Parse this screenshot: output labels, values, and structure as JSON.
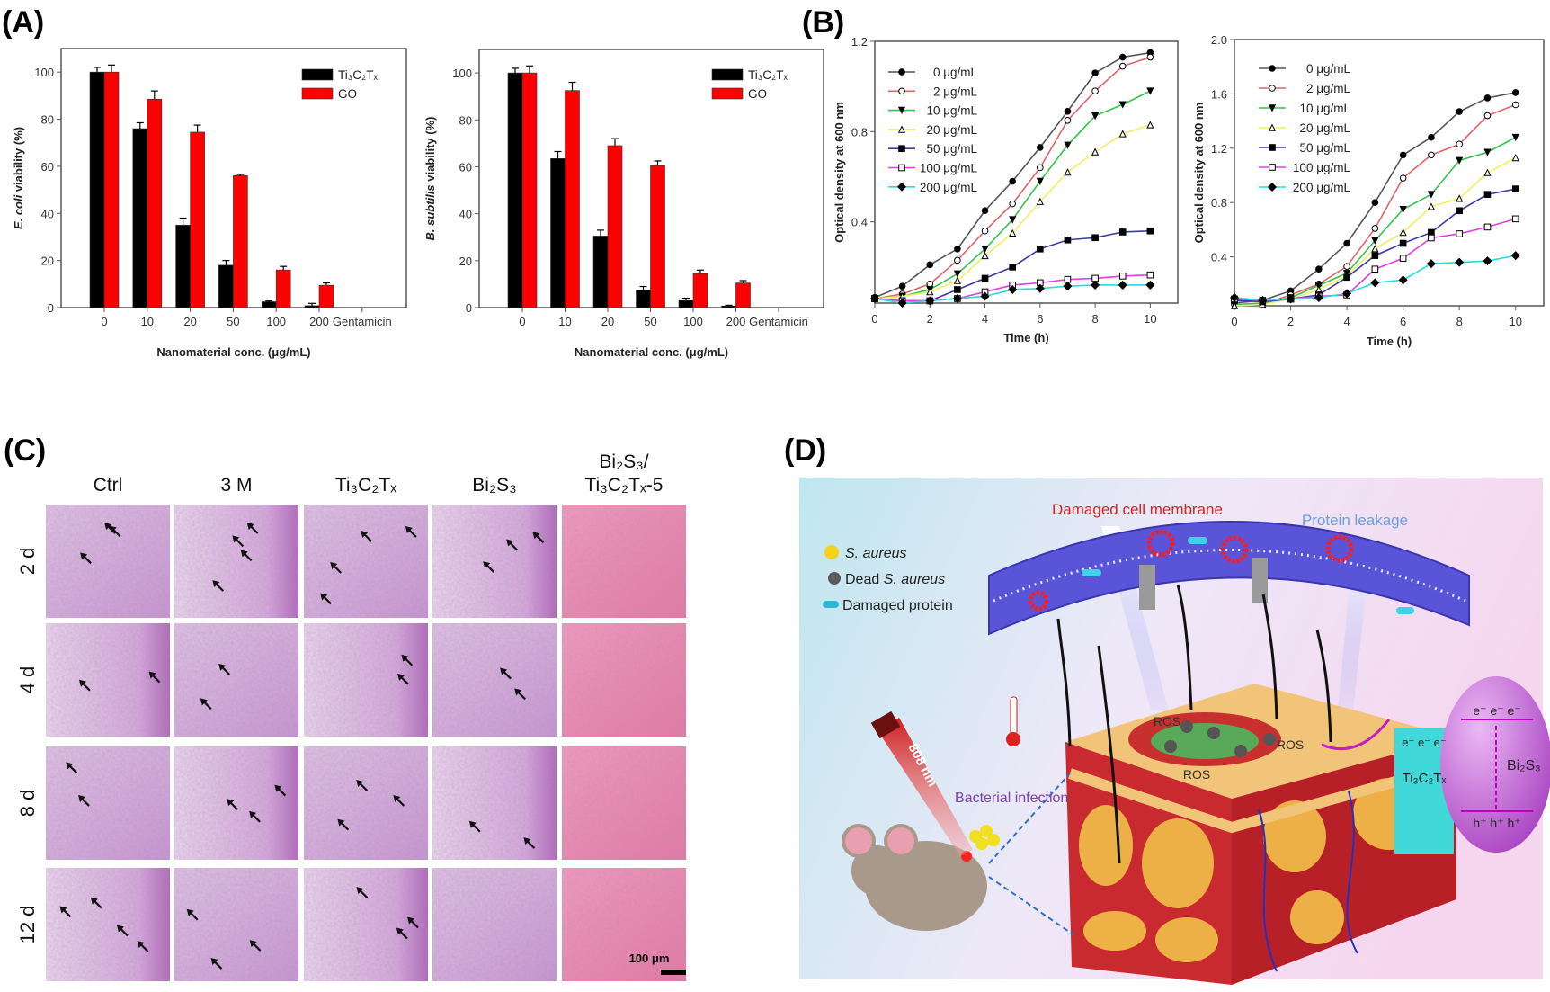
{
  "panel_labels": {
    "a": "(A)",
    "b": "(B)",
    "c": "(C)",
    "d": "(D)"
  },
  "chart_data": [
    {
      "type": "bar",
      "ylabel_italic": "E. coli",
      "ylabel_rest": " viability (%)",
      "xlabel": "Nanomaterial conc. (μg/mL)",
      "categories": [
        "0",
        "10",
        "20",
        "50",
        "100",
        "200",
        "Gentamicin"
      ],
      "ylim": [
        0,
        110
      ],
      "yticks": [
        "0",
        "20",
        "40",
        "60",
        "80",
        "100"
      ],
      "legend_position": "top-right",
      "series": [
        {
          "name": "Ti₃C₂Tₓ",
          "color": "#000000",
          "values": [
            100,
            76,
            35,
            18,
            2.5,
            0.8,
            0
          ],
          "errors": [
            2,
            2.5,
            3,
            2,
            0.3,
            1,
            0
          ]
        },
        {
          "name": "GO",
          "color": "#ff0000",
          "values": [
            100,
            88.5,
            74.5,
            56,
            16,
            9.5,
            0
          ],
          "errors": [
            3,
            3.5,
            3,
            0.5,
            1.5,
            1,
            0
          ]
        }
      ]
    },
    {
      "type": "bar",
      "ylabel_italic": "B. subtilis",
      "ylabel_rest": " viability (%)",
      "xlabel": "Nanomaterial conc. (μg/mL)",
      "categories": [
        "0",
        "10",
        "20",
        "50",
        "100",
        "200",
        "Gentamicin"
      ],
      "ylim": [
        0,
        110
      ],
      "yticks": [
        "0",
        "20",
        "40",
        "60",
        "80",
        "100"
      ],
      "legend_position": "top-right",
      "series": [
        {
          "name": "Ti₃C₂Tₓ",
          "color": "#000000",
          "values": [
            100,
            63.5,
            30.5,
            7.5,
            3,
            0.7,
            0
          ],
          "errors": [
            2,
            3,
            2.5,
            1.5,
            1,
            0.3,
            0
          ]
        },
        {
          "name": "GO",
          "color": "#ff0000",
          "values": [
            100,
            92.5,
            69,
            60.5,
            14.5,
            10.5,
            0
          ],
          "errors": [
            3,
            3.5,
            3,
            2,
            1.5,
            1,
            0
          ]
        }
      ]
    },
    {
      "type": "line",
      "ylabel": "Optical density at 600 nm",
      "xlabel": "Time (h)",
      "x": [
        0,
        1,
        2,
        3,
        4,
        5,
        6,
        7,
        8,
        9,
        10
      ],
      "xticks": [
        "0",
        "2",
        "4",
        "6",
        "8",
        "10"
      ],
      "xlim": [
        0,
        11
      ],
      "ylim": [
        0.04,
        1.2
      ],
      "yticks": [
        "0.4",
        "0.8",
        "1.2"
      ],
      "legend_position": "top-left",
      "series": [
        {
          "name": "0 μg/mL",
          "color": "#555555",
          "marker": "filled-circle",
          "values": [
            0.065,
            0.115,
            0.21,
            0.28,
            0.45,
            0.58,
            0.73,
            0.89,
            1.06,
            1.13,
            1.15
          ]
        },
        {
          "name": "2 μg/mL",
          "color": "#e06464",
          "marker": "open-circle",
          "values": [
            0.06,
            0.08,
            0.125,
            0.23,
            0.36,
            0.48,
            0.64,
            0.85,
            0.98,
            1.09,
            1.13
          ]
        },
        {
          "name": "10 μg/mL",
          "color": "#33c24a",
          "marker": "filled-triangle-down",
          "values": [
            0.06,
            0.07,
            0.1,
            0.17,
            0.28,
            0.41,
            0.58,
            0.74,
            0.87,
            0.92,
            0.98
          ]
        },
        {
          "name": "20 μg/mL",
          "color": "#f0ee60",
          "marker": "open-triangle-up",
          "values": [
            0.06,
            0.07,
            0.09,
            0.14,
            0.25,
            0.35,
            0.49,
            0.62,
            0.71,
            0.79,
            0.83
          ]
        },
        {
          "name": "50 μg/mL",
          "color": "#3a3aa8",
          "marker": "filled-square",
          "values": [
            0.06,
            0.05,
            0.05,
            0.1,
            0.15,
            0.2,
            0.28,
            0.32,
            0.33,
            0.355,
            0.36
          ]
        },
        {
          "name": "100 μg/mL",
          "color": "#e040e0",
          "marker": "open-square",
          "values": [
            0.06,
            0.05,
            0.05,
            0.06,
            0.09,
            0.12,
            0.13,
            0.145,
            0.15,
            0.16,
            0.165
          ]
        },
        {
          "name": "200 μg/mL",
          "color": "#22dede",
          "marker": "filled-diamond",
          "values": [
            0.06,
            0.04,
            0.05,
            0.06,
            0.07,
            0.1,
            0.105,
            0.115,
            0.12,
            0.12,
            0.12
          ]
        }
      ]
    },
    {
      "type": "line",
      "ylabel": "Optical density at 600 nm",
      "xlabel": "Time (h)",
      "x": [
        0,
        1,
        2,
        3,
        4,
        5,
        6,
        7,
        8,
        9,
        10
      ],
      "xticks": [
        "0",
        "2",
        "4",
        "6",
        "8",
        "10"
      ],
      "xlim": [
        0,
        11
      ],
      "ylim": [
        0.04,
        2.0
      ],
      "yticks": [
        "0.4",
        "0.8",
        "1.2",
        "1.6",
        "2.0"
      ],
      "legend_position": "top-left",
      "series": [
        {
          "name": "0 μg/mL",
          "color": "#555555",
          "marker": "filled-circle",
          "values": [
            0.06,
            0.08,
            0.15,
            0.31,
            0.5,
            0.8,
            1.15,
            1.28,
            1.47,
            1.57,
            1.61
          ]
        },
        {
          "name": "2 μg/mL",
          "color": "#e06464",
          "marker": "open-circle",
          "values": [
            0.05,
            0.05,
            0.12,
            0.2,
            0.33,
            0.61,
            0.98,
            1.15,
            1.23,
            1.44,
            1.52
          ]
        },
        {
          "name": "10 μg/mL",
          "color": "#33c24a",
          "marker": "filled-triangle-down",
          "values": [
            0.05,
            0.06,
            0.1,
            0.19,
            0.28,
            0.52,
            0.75,
            0.86,
            1.11,
            1.17,
            1.28
          ]
        },
        {
          "name": "20 μg/mL",
          "color": "#f0ee60",
          "marker": "open-triangle-up",
          "values": [
            0.04,
            0.05,
            0.09,
            0.16,
            0.26,
            0.46,
            0.58,
            0.77,
            0.83,
            1.02,
            1.13
          ]
        },
        {
          "name": "50 μg/mL",
          "color": "#3a3aa8",
          "marker": "filled-square",
          "values": [
            0.08,
            0.07,
            0.09,
            0.12,
            0.25,
            0.41,
            0.5,
            0.58,
            0.74,
            0.86,
            0.9
          ]
        },
        {
          "name": "100 μg/mL",
          "color": "#e040e0",
          "marker": "open-square",
          "values": [
            0.09,
            0.08,
            0.09,
            0.11,
            0.12,
            0.31,
            0.39,
            0.54,
            0.57,
            0.62,
            0.68
          ]
        },
        {
          "name": "200 μg/mL",
          "color": "#22dede",
          "marker": "filled-diamond",
          "values": [
            0.1,
            0.08,
            0.09,
            0.1,
            0.13,
            0.21,
            0.23,
            0.35,
            0.36,
            0.37,
            0.41
          ]
        }
      ]
    }
  ],
  "panel_c": {
    "columns": [
      {
        "line1": "",
        "line2": "Ctrl"
      },
      {
        "line1": "",
        "line2": "3 M"
      },
      {
        "line1": "",
        "line2": "Ti₃C₂Tₓ"
      },
      {
        "line1": "",
        "line2": "Bi₂S₃"
      },
      {
        "line1": "Bi₂S₃/",
        "line2": "Ti₃C₂Tₓ-5"
      }
    ],
    "rows": [
      "2 d",
      "4 d",
      "8 d",
      "12 d"
    ],
    "scale_bar": "100 μm"
  },
  "panel_d": {
    "damaged_membrane": "Damaged cell membrane",
    "protein_leakage": "Protein leakage",
    "legend": [
      {
        "prefix": "",
        "italic": "S. aureus",
        "suffix": ""
      },
      {
        "prefix": "Dead ",
        "italic": "S. aureus",
        "suffix": ""
      },
      {
        "prefix": "Damaged protein",
        "italic": "",
        "suffix": ""
      }
    ],
    "ros": [
      "ROS",
      "ROS",
      "ROS"
    ],
    "bacterial_infection": "Bacterial infection",
    "laser": "808 nm",
    "ti3c2tx": "Ti₃C₂Tₓ",
    "bi2s3": "Bi₂S₃",
    "electrons_left": "e⁻ e⁻ e⁻",
    "electrons_right": "e⁻ e⁻ e⁻",
    "holes": "h⁺ h⁺ h⁺",
    "colors": {
      "membrane": "#5a55d8",
      "damage": "#e02020",
      "leakage": "#6aa0e0",
      "bi2s3": "#c060d8",
      "ti3c2tx": "#40d8d8"
    }
  }
}
